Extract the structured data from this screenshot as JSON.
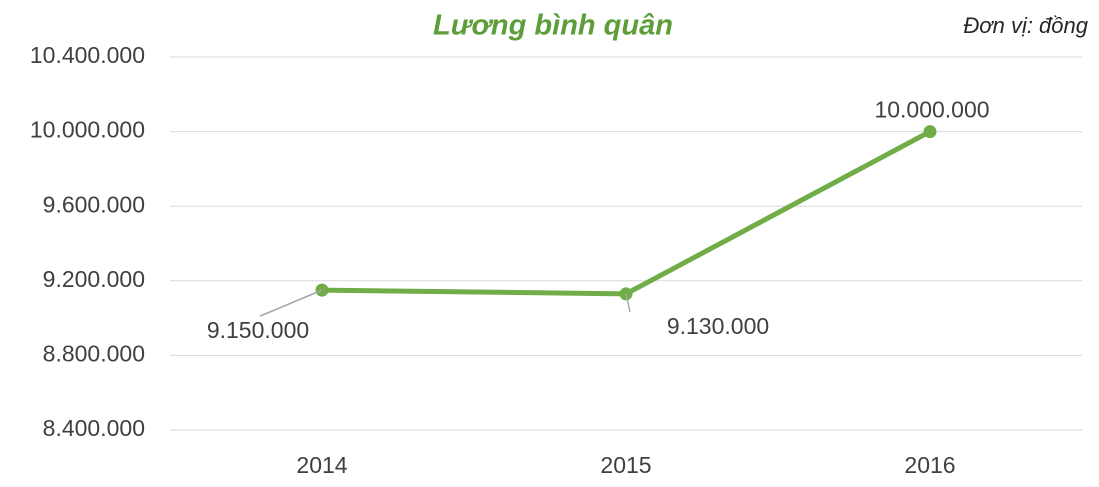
{
  "chart_data": {
    "type": "line",
    "title": "Lương bình quân",
    "annotation": "Đơn vị: đồng",
    "categories": [
      "2014",
      "2015",
      "2016"
    ],
    "series": [
      {
        "name": "Lương bình quân",
        "color": "#70ad47",
        "values": [
          9150000,
          9130000,
          10000000
        ],
        "value_labels": [
          "9.150.000",
          "9.130.000",
          "10.000.000"
        ]
      }
    ],
    "ylim": [
      8400000,
      10400000
    ],
    "yticks": [
      {
        "value": 8400000,
        "label": "8.400.000"
      },
      {
        "value": 8800000,
        "label": "8.800.000"
      },
      {
        "value": 9200000,
        "label": "9.200.000"
      },
      {
        "value": 9600000,
        "label": "9.600.000"
      },
      {
        "value": 10000000,
        "label": "10.000.000"
      },
      {
        "value": 10400000,
        "label": "10.400.000"
      }
    ],
    "grid": true
  }
}
